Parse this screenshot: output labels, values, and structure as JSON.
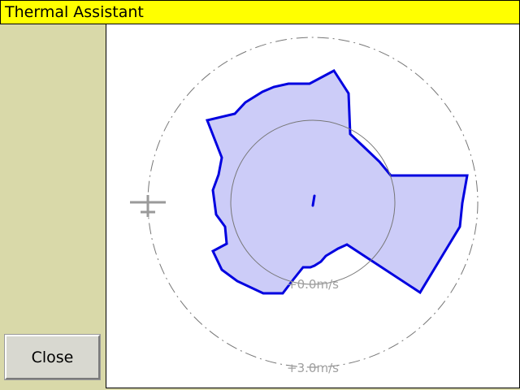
{
  "window": {
    "title": "Thermal Assistant"
  },
  "sidebar": {
    "close_label": "Close"
  },
  "display": {
    "inner_ring_label": "+0.0m/s",
    "outer_ring_label": "+3.0m/s",
    "colors": {
      "lift_outline": "#0000e0",
      "lift_fill": "#ccccf8",
      "ring": "#777777",
      "aircraft": "#9a9a9a",
      "title_bar": "#ffff00",
      "sidebar": "#d9d9a9"
    },
    "icons": [
      "aircraft-icon",
      "thermal-center-marker-icon"
    ]
  }
}
